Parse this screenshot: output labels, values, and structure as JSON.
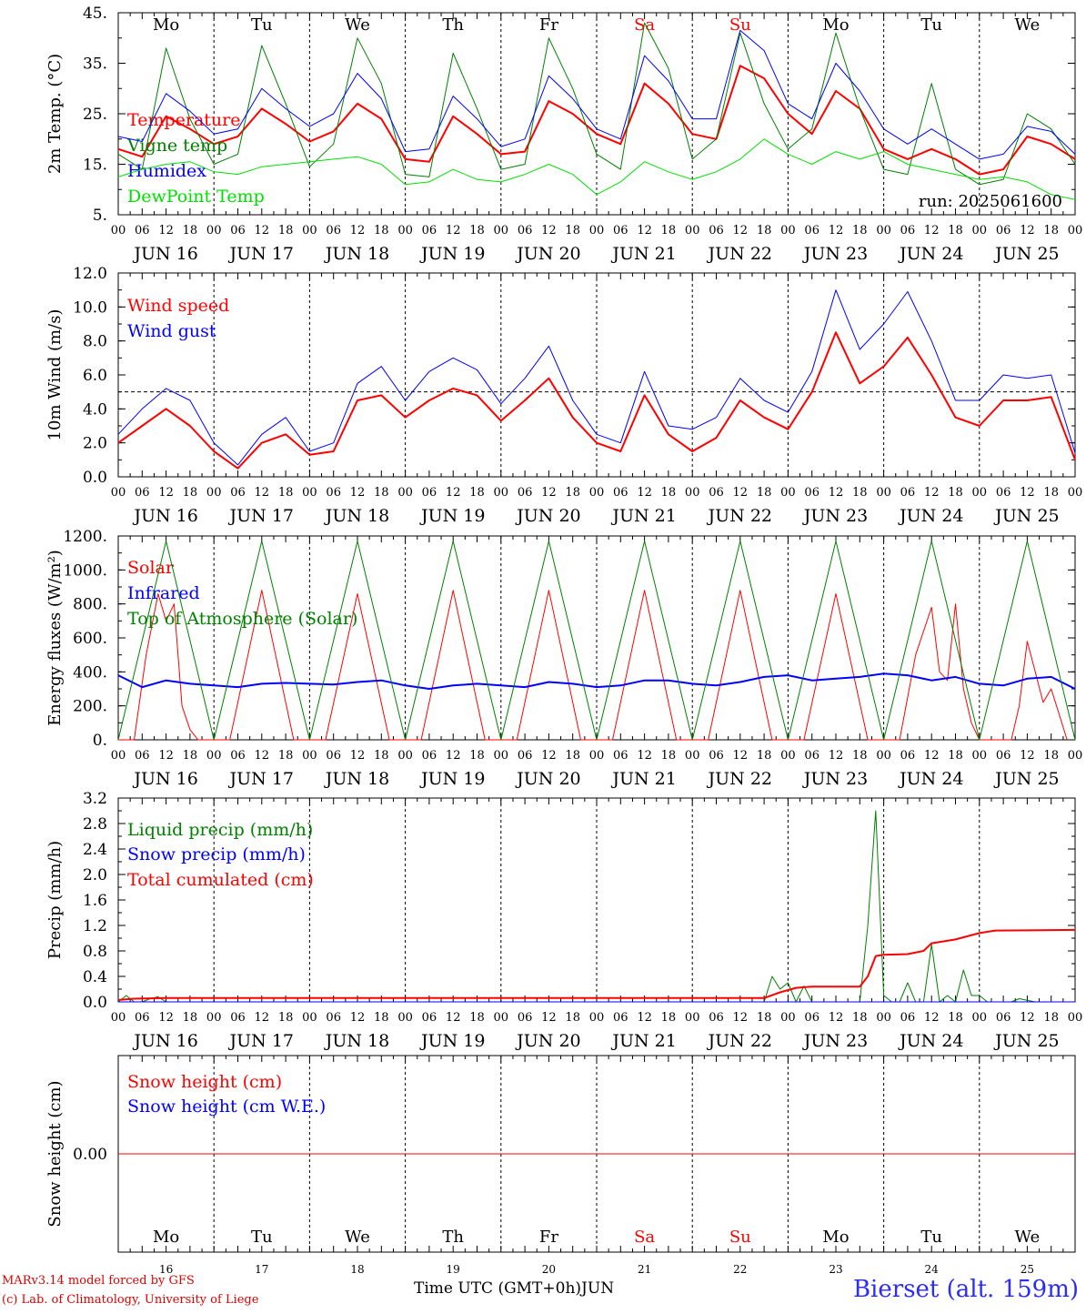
{
  "days": [
    "Mo",
    "Tu",
    "We",
    "Th",
    "Fr",
    "Sa",
    "Su",
    "Mo",
    "Tu",
    "We"
  ],
  "weekend_days": [
    5,
    6
  ],
  "dates": [
    "JUN 16",
    "JUN 17",
    "JUN 18",
    "JUN 19",
    "JUN 20",
    "JUN 21",
    "JUN 22",
    "JUN 23",
    "JUN 24",
    "JUN 25"
  ],
  "day_numbers": [
    "16",
    "17",
    "18",
    "19",
    "20",
    "21",
    "22",
    "23",
    "24",
    "25"
  ],
  "hour_ticks": [
    "00",
    "06",
    "12",
    "18"
  ],
  "final_hour": "00",
  "colors": {
    "red": "#ff0000",
    "green": "#008000",
    "blue": "#0000ff",
    "lightgreen": "#00e000",
    "axis": "#000000",
    "weekend": "#ff0000"
  },
  "run_label": "run: 2025061600",
  "footer": {
    "model_line": "MARv3.14 model forced by GFS",
    "lab_line": "(c) Lab. of Climatology, University of Liege",
    "time_axis": "Time UTC (GMT+0h)",
    "month": "JUN",
    "station": "Bierset (alt. 159m)"
  },
  "chart_data": [
    {
      "type": "line",
      "ylabel": "2m Temp. (°C)",
      "ylim": [
        5,
        45
      ],
      "yticks": [
        "5.",
        "15.",
        "25.",
        "35.",
        "45."
      ],
      "ytick_values": [
        5,
        15,
        25,
        35,
        45
      ],
      "show_days": true,
      "x_unit": "hours since JUN 16 00 UTC",
      "series": [
        {
          "name": "Temperature",
          "color": "red",
          "width": 2,
          "x": [
            0,
            6,
            12,
            18,
            24,
            30,
            36,
            42,
            48,
            54,
            60,
            66,
            72,
            78,
            84,
            90,
            96,
            102,
            108,
            114,
            120,
            126,
            132,
            138,
            144,
            150,
            156,
            162,
            168,
            174,
            180,
            186,
            192,
            198,
            204,
            210,
            216,
            222,
            228,
            234,
            240
          ],
          "y": [
            18,
            16.5,
            24.5,
            22,
            19,
            20.5,
            26,
            23,
            19.5,
            21.5,
            27,
            24,
            16,
            15.5,
            24.5,
            21,
            17,
            17.5,
            27.5,
            25,
            21,
            19,
            31,
            27,
            21,
            20,
            34.5,
            32,
            25,
            21,
            29.5,
            26,
            18,
            16,
            18,
            16,
            13,
            14,
            20.5,
            19,
            16
          ]
        },
        {
          "name": "Vigne temp",
          "color": "green",
          "width": 1,
          "x": [
            0,
            6,
            12,
            18,
            24,
            30,
            36,
            42,
            48,
            54,
            60,
            66,
            72,
            78,
            84,
            90,
            96,
            102,
            108,
            114,
            120,
            126,
            132,
            138,
            144,
            150,
            156,
            162,
            168,
            174,
            180,
            186,
            192,
            198,
            204,
            210,
            216,
            222,
            228,
            234,
            240
          ],
          "y": [
            17,
            14,
            38,
            24,
            15,
            17,
            38.5,
            27,
            14.5,
            19,
            40,
            31,
            13,
            12.5,
            37,
            26,
            14,
            15,
            40,
            30,
            17,
            14,
            43,
            34,
            16,
            20,
            41,
            27,
            18,
            22,
            41,
            26,
            14,
            13,
            31,
            14,
            11,
            12,
            25,
            22,
            15
          ]
        },
        {
          "name": "Humidex",
          "color": "blue",
          "width": 1,
          "x": [
            0,
            6,
            12,
            18,
            24,
            30,
            36,
            42,
            48,
            54,
            60,
            66,
            72,
            78,
            84,
            90,
            96,
            102,
            108,
            114,
            120,
            126,
            132,
            138,
            144,
            150,
            156,
            162,
            168,
            174,
            180,
            186,
            192,
            198,
            204,
            210,
            216,
            222,
            228,
            234,
            240
          ],
          "y": [
            20.5,
            19.5,
            29,
            25.5,
            21,
            22,
            30,
            26,
            22.5,
            25,
            33,
            28,
            17.5,
            18,
            28.5,
            24,
            18.5,
            20,
            32.5,
            28,
            22,
            20,
            36.5,
            31.5,
            24,
            24,
            41.5,
            37.5,
            27,
            24,
            35,
            29.5,
            22,
            19,
            22,
            19,
            16,
            17,
            22.5,
            21.5,
            17
          ]
        },
        {
          "name": "DewPoint Temp",
          "color": "lightgreen",
          "width": 1,
          "x": [
            0,
            6,
            12,
            18,
            24,
            30,
            36,
            42,
            48,
            54,
            60,
            66,
            72,
            78,
            84,
            90,
            96,
            102,
            108,
            114,
            120,
            126,
            132,
            138,
            144,
            150,
            156,
            162,
            168,
            174,
            180,
            186,
            192,
            198,
            204,
            210,
            216,
            222,
            228,
            234,
            240
          ],
          "y": [
            12.5,
            14,
            15,
            15.5,
            13.5,
            13,
            14.5,
            15,
            15.5,
            16,
            16.5,
            15,
            11,
            11.5,
            14,
            12,
            11.5,
            13,
            15,
            13,
            9,
            11.5,
            15.5,
            13.5,
            12,
            13.5,
            16,
            20,
            17,
            15,
            17.5,
            16,
            17.5,
            15,
            14,
            13,
            12,
            12.5,
            11.5,
            9,
            8
          ]
        }
      ]
    },
    {
      "type": "line",
      "ylabel": "10m Wind (m/s)",
      "ylim": [
        0,
        12
      ],
      "yticks": [
        "0.0",
        "2.0",
        "4.0",
        "6.0",
        "8.0",
        "10.0",
        "12.0"
      ],
      "ytick_values": [
        0,
        2,
        4,
        6,
        8,
        10,
        12
      ],
      "ref_line": 5,
      "series": [
        {
          "name": "Wind speed",
          "color": "red",
          "width": 2,
          "x": [
            0,
            6,
            12,
            18,
            24,
            30,
            36,
            42,
            48,
            54,
            60,
            66,
            72,
            78,
            84,
            90,
            96,
            102,
            108,
            114,
            120,
            126,
            132,
            138,
            144,
            150,
            156,
            162,
            168,
            174,
            180,
            186,
            192,
            198,
            204,
            210,
            216,
            222,
            228,
            234,
            240
          ],
          "y": [
            2,
            3,
            4,
            3,
            1.5,
            0.5,
            2,
            2.5,
            1.3,
            1.5,
            4.5,
            4.8,
            3.5,
            4.5,
            5.2,
            4.8,
            3.3,
            4.5,
            5.8,
            3.5,
            2,
            1.5,
            4.8,
            2.5,
            1.5,
            2.3,
            4.5,
            3.5,
            2.8,
            5,
            8.5,
            5.5,
            6.5,
            8.2,
            6,
            3.5,
            3,
            4.5,
            4.5,
            4.7,
            1
          ]
        },
        {
          "name": "Wind gust",
          "color": "blue",
          "width": 1,
          "x": [
            0,
            6,
            12,
            18,
            24,
            30,
            36,
            42,
            48,
            54,
            60,
            66,
            72,
            78,
            84,
            90,
            96,
            102,
            108,
            114,
            120,
            126,
            132,
            138,
            144,
            150,
            156,
            162,
            168,
            174,
            180,
            186,
            192,
            198,
            204,
            210,
            216,
            222,
            228,
            234,
            240
          ],
          "y": [
            2.5,
            4,
            5.2,
            4.5,
            2,
            0.7,
            2.5,
            3.5,
            1.5,
            2,
            5.5,
            6.5,
            4.5,
            6.2,
            7,
            6.3,
            4.3,
            5.8,
            7.7,
            4.5,
            2.5,
            2,
            6.2,
            3,
            2.8,
            3.5,
            5.8,
            4.5,
            3.8,
            6.2,
            11,
            7.5,
            9,
            10.9,
            8,
            4.5,
            4.5,
            6,
            5.8,
            6,
            1.4
          ]
        }
      ]
    },
    {
      "type": "line",
      "ylabel": "Energy fluxes (W/m²)",
      "ylim": [
        0,
        1200
      ],
      "yticks": [
        "0.",
        "200.",
        "400.",
        "600.",
        "800.",
        "1000.",
        "1200."
      ],
      "ytick_values": [
        0,
        200,
        400,
        600,
        800,
        1000,
        1200
      ],
      "series": [
        {
          "name": "Solar",
          "color": "red",
          "width": 1,
          "x": [
            0,
            4,
            7,
            10,
            12,
            14,
            16,
            18,
            20,
            28,
            36,
            44,
            52,
            60,
            68,
            76,
            84,
            92,
            100,
            108,
            116,
            124,
            132,
            140,
            148,
            156,
            164,
            172,
            180,
            188,
            196,
            200,
            204,
            206,
            208,
            210,
            212,
            214,
            216,
            220,
            224,
            226,
            228,
            230,
            232,
            234,
            236,
            238
          ],
          "y": [
            0,
            0,
            500,
            860,
            700,
            800,
            200,
            60,
            0,
            0,
            880,
            0,
            0,
            860,
            0,
            0,
            880,
            0,
            0,
            880,
            0,
            0,
            880,
            0,
            0,
            880,
            0,
            0,
            860,
            0,
            0,
            500,
            780,
            400,
            350,
            800,
            300,
            100,
            0,
            0,
            0,
            200,
            580,
            400,
            220,
            300,
            150,
            0
          ]
        },
        {
          "name": "Infrared",
          "color": "blue",
          "width": 2,
          "x": [
            0,
            6,
            12,
            18,
            24,
            30,
            36,
            42,
            48,
            54,
            60,
            66,
            72,
            78,
            84,
            90,
            96,
            102,
            108,
            114,
            120,
            126,
            132,
            138,
            144,
            150,
            156,
            162,
            168,
            174,
            180,
            186,
            192,
            198,
            204,
            210,
            216,
            222,
            228,
            234,
            240
          ],
          "y": [
            380,
            310,
            350,
            330,
            320,
            310,
            330,
            335,
            330,
            325,
            340,
            350,
            320,
            300,
            320,
            330,
            320,
            310,
            340,
            330,
            310,
            320,
            350,
            350,
            330,
            320,
            340,
            370,
            380,
            350,
            360,
            370,
            390,
            380,
            350,
            370,
            330,
            320,
            360,
            370,
            300
          ]
        },
        {
          "name": "Top of Atmosphere (Solar)",
          "color": "green",
          "width": 1,
          "x": [
            0,
            12,
            24,
            36,
            48,
            60,
            72,
            84,
            96,
            108,
            120,
            132,
            144,
            156,
            168,
            180,
            192,
            204,
            216,
            228,
            240
          ],
          "y": [
            0,
            1170,
            0,
            1170,
            0,
            1170,
            0,
            1170,
            0,
            1170,
            0,
            1170,
            0,
            1170,
            0,
            1170,
            0,
            1170,
            0,
            1170,
            0
          ]
        }
      ]
    },
    {
      "type": "line",
      "ylabel": "Precip (mm/h)",
      "ylim": [
        0,
        3.2
      ],
      "yticks": [
        "0.0",
        "0.4",
        "0.8",
        "1.2",
        "1.6",
        "2.0",
        "2.4",
        "2.8",
        "3.2"
      ],
      "ytick_values": [
        0,
        0.4,
        0.8,
        1.2,
        1.6,
        2.0,
        2.4,
        2.8,
        3.2
      ],
      "series": [
        {
          "name": "Liquid precip (mm/h)",
          "color": "green",
          "width": 1,
          "x": [
            0,
            2,
            4,
            6,
            8,
            10,
            12,
            150,
            162,
            164,
            166,
            168,
            170,
            172,
            174,
            186,
            188,
            190,
            192,
            194,
            196,
            198,
            200,
            202,
            204,
            206,
            208,
            210,
            212,
            214,
            216,
            218,
            220,
            222,
            224,
            226,
            230,
            240
          ],
          "y": [
            0,
            0.1,
            0,
            0,
            0.05,
            0.08,
            0,
            0,
            0,
            0.4,
            0.2,
            0.3,
            0,
            0.25,
            0,
            0,
            1.2,
            3.0,
            0.1,
            0,
            0,
            0.3,
            0,
            0,
            0.9,
            0,
            0.1,
            0,
            0.5,
            0.1,
            0.1,
            0,
            0,
            0,
            0,
            0.05,
            0,
            0
          ]
        },
        {
          "name": "Snow precip (mm/h)",
          "color": "blue",
          "width": 1,
          "x": [
            0,
            240
          ],
          "y": [
            0,
            0
          ]
        },
        {
          "name": "Total cumulated (cm)",
          "color": "red",
          "width": 2,
          "x": [
            0,
            4,
            12,
            162,
            166,
            170,
            174,
            186,
            188,
            190,
            192,
            198,
            202,
            204,
            210,
            216,
            220,
            240
          ],
          "y": [
            0.03,
            0.05,
            0.06,
            0.06,
            0.15,
            0.22,
            0.24,
            0.24,
            0.4,
            0.72,
            0.74,
            0.75,
            0.8,
            0.92,
            0.98,
            1.08,
            1.12,
            1.13
          ]
        }
      ]
    },
    {
      "type": "line",
      "ylabel": "Snow height (cm)",
      "ylim": [
        -1,
        1
      ],
      "yticks": [
        "0.00"
      ],
      "ytick_values": [
        0
      ],
      "series": [
        {
          "name": "Snow height (cm)",
          "color": "red",
          "width": 1,
          "x": [
            0,
            240
          ],
          "y": [
            0,
            0
          ]
        },
        {
          "name": "Snow height (cm W.E.)",
          "color": "blue",
          "width": 0,
          "x": [],
          "y": []
        }
      ]
    }
  ]
}
